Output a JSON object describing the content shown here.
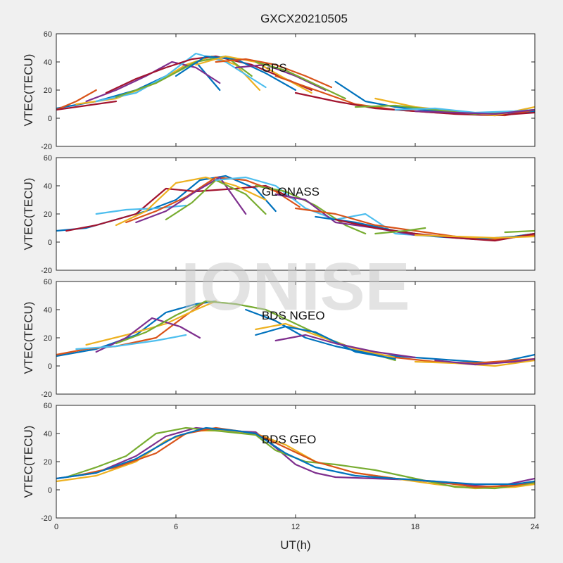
{
  "figure": {
    "title": "GXCX20210505",
    "watermark": "IONISE",
    "background": "#f0f0f0",
    "axes_background": "#ffffff",
    "palette": [
      "#0072bd",
      "#d95319",
      "#edb120",
      "#7e2f8e",
      "#77ac30",
      "#4dbeee",
      "#a2142f"
    ]
  },
  "chart_data": [
    {
      "type": "line",
      "label": "GPS",
      "ylabel": "VTEC(TECU)",
      "xlim": [
        0,
        24
      ],
      "ylim": [
        -20,
        60
      ],
      "xticks": [
        0,
        6,
        12,
        18,
        24
      ],
      "yticks": [
        -20,
        0,
        20,
        40,
        60
      ],
      "grid": false,
      "series": [
        {
          "color": "#0072bd",
          "x": [
            0,
            2,
            4,
            5.5,
            7,
            8.2
          ],
          "y": [
            7,
            12,
            20,
            30,
            40,
            20
          ]
        },
        {
          "color": "#d95319",
          "x": [
            0,
            1,
            2
          ],
          "y": [
            6,
            12,
            20
          ]
        },
        {
          "color": "#edb120",
          "x": [
            1,
            3,
            5,
            6.5,
            7.8,
            9,
            10.2
          ],
          "y": [
            10,
            14,
            25,
            38,
            44,
            38,
            20
          ]
        },
        {
          "color": "#7e2f8e",
          "x": [
            1.5,
            3,
            4.5,
            5.8,
            7,
            8.2
          ],
          "y": [
            12,
            20,
            30,
            40,
            36,
            25
          ]
        },
        {
          "color": "#4dbeee",
          "x": [
            2,
            4,
            5.5,
            7,
            8.5,
            10.5
          ],
          "y": [
            12,
            18,
            30,
            46,
            40,
            22
          ]
        },
        {
          "color": "#a2142f",
          "x": [
            2.5,
            4,
            5.5,
            6.8,
            8,
            9.8,
            11.5,
            12.8
          ],
          "y": [
            18,
            28,
            36,
            42,
            44,
            38,
            28,
            20
          ]
        },
        {
          "color": "#77ac30",
          "x": [
            3,
            5,
            7,
            8.5,
            9.8
          ],
          "y": [
            15,
            25,
            40,
            44,
            30
          ]
        },
        {
          "color": "#0072bd",
          "x": [
            6,
            7.5,
            9,
            10.5,
            12
          ],
          "y": [
            30,
            44,
            42,
            32,
            20
          ]
        },
        {
          "color": "#edb120",
          "x": [
            7,
            8.5,
            10,
            11.5,
            12.8
          ],
          "y": [
            38,
            44,
            40,
            28,
            18
          ]
        },
        {
          "color": "#d95319",
          "x": [
            8,
            9.5,
            11,
            12.5,
            13.8
          ],
          "y": [
            40,
            42,
            38,
            30,
            22
          ]
        },
        {
          "color": "#7e2f8e",
          "x": [
            9,
            10.5,
            12,
            13.5
          ],
          "y": [
            36,
            38,
            30,
            20
          ]
        },
        {
          "color": "#77ac30",
          "x": [
            10,
            11.5,
            13,
            14.5
          ],
          "y": [
            40,
            34,
            24,
            14
          ]
        },
        {
          "color": "#0072bd",
          "x": [
            14,
            15.5,
            17,
            19,
            21,
            23,
            24
          ],
          "y": [
            26,
            12,
            8,
            5,
            3,
            4,
            5
          ]
        },
        {
          "color": "#d95319",
          "x": [
            11,
            13,
            15,
            17,
            19,
            21,
            22.5,
            24
          ],
          "y": [
            30,
            20,
            10,
            6,
            4,
            3,
            2,
            6
          ]
        },
        {
          "color": "#a2142f",
          "x": [
            12,
            14,
            16,
            18,
            20,
            22,
            24
          ],
          "y": [
            18,
            12,
            7,
            5,
            3,
            2,
            4
          ]
        },
        {
          "color": "#edb120",
          "x": [
            16,
            18,
            20,
            22,
            24
          ],
          "y": [
            14,
            8,
            5,
            2,
            8
          ]
        },
        {
          "color": "#77ac30",
          "x": [
            15,
            17,
            19,
            21,
            23,
            24
          ],
          "y": [
            8,
            9,
            6,
            3,
            5,
            6
          ]
        },
        {
          "color": "#4dbeee",
          "x": [
            17,
            19,
            21,
            23,
            24
          ],
          "y": [
            6,
            7,
            4,
            5,
            6
          ]
        },
        {
          "color": "#7e2f8e",
          "x": [
            18,
            20,
            22,
            24
          ],
          "y": [
            5,
            4,
            3,
            6
          ]
        },
        {
          "color": "#a2142f",
          "x": [
            0,
            1.5,
            3
          ],
          "y": [
            6,
            9,
            12
          ]
        }
      ]
    },
    {
      "type": "line",
      "label": "GLONASS",
      "ylabel": "VTEC(TECU)",
      "xlim": [
        0,
        24
      ],
      "ylim": [
        -20,
        60
      ],
      "xticks": [
        0,
        6,
        12,
        18,
        24
      ],
      "yticks": [
        -20,
        0,
        20,
        40,
        60
      ],
      "grid": false,
      "series": [
        {
          "color": "#0072bd",
          "x": [
            0,
            1.5,
            3,
            4.5,
            6,
            7.2,
            8.5,
            10,
            11
          ],
          "y": [
            8,
            10,
            16,
            22,
            30,
            44,
            47,
            38,
            22
          ]
        },
        {
          "color": "#a2142f",
          "x": [
            0.5,
            2,
            4,
            5.5,
            7,
            9,
            10.5,
            12
          ],
          "y": [
            8,
            12,
            20,
            38,
            36,
            38,
            40,
            30
          ]
        },
        {
          "color": "#4dbeee",
          "x": [
            2,
            3.5,
            5,
            6.5
          ],
          "y": [
            20,
            23,
            24,
            26
          ]
        },
        {
          "color": "#edb120",
          "x": [
            3,
            4.5,
            6,
            7.5,
            9,
            10.5
          ],
          "y": [
            12,
            22,
            42,
            46,
            40,
            30
          ]
        },
        {
          "color": "#d95319",
          "x": [
            3.5,
            5,
            6.5,
            8,
            9.5,
            11,
            12.2
          ],
          "y": [
            14,
            22,
            32,
            46,
            44,
            36,
            25
          ]
        },
        {
          "color": "#7e2f8e",
          "x": [
            4,
            5.5,
            7,
            8.2,
            9.5
          ],
          "y": [
            14,
            22,
            36,
            46,
            20
          ]
        },
        {
          "color": "#77ac30",
          "x": [
            5.5,
            6.8,
            8,
            9.5,
            10.5
          ],
          "y": [
            16,
            28,
            44,
            34,
            20
          ]
        },
        {
          "color": "#4dbeee",
          "x": [
            8,
            9.5,
            11,
            12.5,
            14,
            15.5,
            17,
            19
          ],
          "y": [
            44,
            46,
            40,
            24,
            16,
            20,
            6,
            4
          ]
        },
        {
          "color": "#77ac30",
          "x": [
            10,
            11.5,
            13,
            14.5,
            15.5
          ],
          "y": [
            40,
            36,
            26,
            12,
            6
          ]
        },
        {
          "color": "#7e2f8e",
          "x": [
            11,
            12.5,
            14,
            16,
            18,
            20,
            22,
            24
          ],
          "y": [
            34,
            30,
            14,
            10,
            5,
            4,
            2,
            6
          ]
        },
        {
          "color": "#d95319",
          "x": [
            12,
            14,
            16,
            18,
            20,
            22,
            24
          ],
          "y": [
            24,
            20,
            12,
            8,
            4,
            2,
            5
          ]
        },
        {
          "color": "#0072bd",
          "x": [
            13,
            15,
            17,
            19,
            21,
            23,
            24
          ],
          "y": [
            18,
            14,
            8,
            4,
            2,
            4,
            6
          ]
        },
        {
          "color": "#a2142f",
          "x": [
            14,
            16,
            18,
            20,
            22,
            24
          ],
          "y": [
            16,
            10,
            6,
            3,
            1,
            6
          ]
        },
        {
          "color": "#77ac30",
          "x": [
            16,
            17.5,
            18.5
          ],
          "y": [
            6,
            8,
            10
          ]
        },
        {
          "color": "#edb120",
          "x": [
            18,
            20,
            22,
            24
          ],
          "y": [
            5,
            4,
            3,
            4
          ]
        },
        {
          "color": "#77ac30",
          "x": [
            22.5,
            24
          ],
          "y": [
            7,
            8
          ]
        }
      ]
    },
    {
      "type": "line",
      "label": "BDS NGEO",
      "ylabel": "VTEC(TECU)",
      "xlim": [
        0,
        24
      ],
      "ylim": [
        -20,
        60
      ],
      "xticks": [
        0,
        6,
        12,
        18,
        24
      ],
      "yticks": [
        -20,
        0,
        20,
        40,
        60
      ],
      "grid": false,
      "series": [
        {
          "color": "#0072bd",
          "x": [
            0,
            2,
            4,
            5.5,
            7,
            8
          ],
          "y": [
            7,
            12,
            22,
            38,
            44,
            46
          ]
        },
        {
          "color": "#d95319",
          "x": [
            0,
            1.5,
            3,
            5,
            6.5,
            7.5
          ],
          "y": [
            8,
            12,
            14,
            20,
            36,
            46
          ]
        },
        {
          "color": "#edb120",
          "x": [
            1.5,
            3.5,
            5.5,
            7,
            8
          ],
          "y": [
            15,
            22,
            30,
            40,
            46
          ]
        },
        {
          "color": "#7e2f8e",
          "x": [
            2,
            3.5,
            4.8,
            6.2,
            7.2
          ],
          "y": [
            10,
            20,
            34,
            28,
            20
          ]
        },
        {
          "color": "#4dbeee",
          "x": [
            1,
            3,
            5,
            6.5
          ],
          "y": [
            12,
            14,
            18,
            22
          ]
        },
        {
          "color": "#77ac30",
          "x": [
            3,
            4.5,
            6,
            7.5,
            9,
            10.5,
            12,
            13.5,
            15,
            17
          ],
          "y": [
            16,
            24,
            36,
            46,
            44,
            40,
            30,
            20,
            12,
            4
          ]
        },
        {
          "color": "#0072bd",
          "x": [
            9.5,
            11,
            12.5,
            14,
            16,
            18,
            20,
            22,
            24
          ],
          "y": [
            40,
            32,
            20,
            14,
            8,
            6,
            4,
            2,
            8
          ]
        },
        {
          "color": "#edb120",
          "x": [
            10,
            11.5,
            13,
            15,
            17
          ],
          "y": [
            26,
            30,
            22,
            12,
            6
          ]
        },
        {
          "color": "#0072bd",
          "x": [
            10,
            11.5,
            13,
            15,
            17
          ],
          "y": [
            22,
            28,
            24,
            10,
            5
          ]
        },
        {
          "color": "#7e2f8e",
          "x": [
            11,
            12.5,
            14,
            16,
            18
          ],
          "y": [
            18,
            22,
            16,
            10,
            6
          ]
        },
        {
          "color": "#d95319",
          "x": [
            17,
            19,
            21,
            23,
            24
          ],
          "y": [
            6,
            3,
            2,
            4,
            5
          ]
        },
        {
          "color": "#edb120",
          "x": [
            18,
            20,
            22,
            24
          ],
          "y": [
            3,
            2,
            0,
            4
          ]
        },
        {
          "color": "#7e2f8e",
          "x": [
            19,
            21,
            23,
            24
          ],
          "y": [
            4,
            1,
            3,
            5
          ]
        }
      ]
    },
    {
      "type": "line",
      "label": "BDS GEO",
      "ylabel": "VTEC(TECU)",
      "xlim": [
        0,
        24
      ],
      "ylim": [
        -20,
        60
      ],
      "xticks": [
        0,
        6,
        12,
        18,
        24
      ],
      "yticks": [
        -20,
        0,
        20,
        40,
        60
      ],
      "grid": false,
      "series": [
        {
          "color": "#7e2f8e",
          "x": [
            0,
            2,
            4,
            5.5,
            7,
            8.5,
            10,
            11,
            12,
            13,
            14,
            16,
            18,
            20,
            22,
            24
          ],
          "y": [
            8,
            12,
            24,
            38,
            44,
            42,
            41,
            30,
            18,
            12,
            9,
            8,
            7,
            4,
            2,
            8
          ]
        },
        {
          "color": "#edb120",
          "x": [
            0,
            2,
            4,
            5.5,
            7,
            8.5,
            10,
            11.5,
            13,
            15,
            17,
            19,
            21,
            23,
            24
          ],
          "y": [
            6,
            10,
            20,
            35,
            42,
            42,
            40,
            32,
            20,
            12,
            8,
            4,
            1,
            2,
            4
          ]
        },
        {
          "color": "#77ac30",
          "x": [
            0.5,
            2,
            3.5,
            5,
            6.5,
            8,
            10,
            11,
            12.5,
            14,
            16,
            18,
            20,
            22,
            24
          ],
          "y": [
            9,
            16,
            24,
            40,
            44,
            42,
            39,
            28,
            20,
            18,
            14,
            8,
            2,
            1,
            5
          ]
        },
        {
          "color": "#d95319",
          "x": [
            1,
            3,
            5,
            6.5,
            8,
            10,
            11.5,
            13,
            15,
            17,
            19,
            21,
            23,
            24
          ],
          "y": [
            10,
            16,
            26,
            40,
            44,
            40,
            30,
            20,
            12,
            8,
            6,
            2,
            3,
            6
          ]
        },
        {
          "color": "#0072bd",
          "x": [
            0,
            2,
            4,
            6,
            7.5,
            9,
            10,
            11.5,
            13,
            15,
            17,
            19,
            21,
            23,
            24
          ],
          "y": [
            8,
            12,
            22,
            38,
            44,
            42,
            40,
            26,
            16,
            10,
            8,
            6,
            4,
            4,
            6
          ]
        }
      ]
    }
  ],
  "x_axis": {
    "label": "UT(h)",
    "tick_labels": [
      "0",
      "6",
      "12",
      "18",
      "24"
    ]
  }
}
